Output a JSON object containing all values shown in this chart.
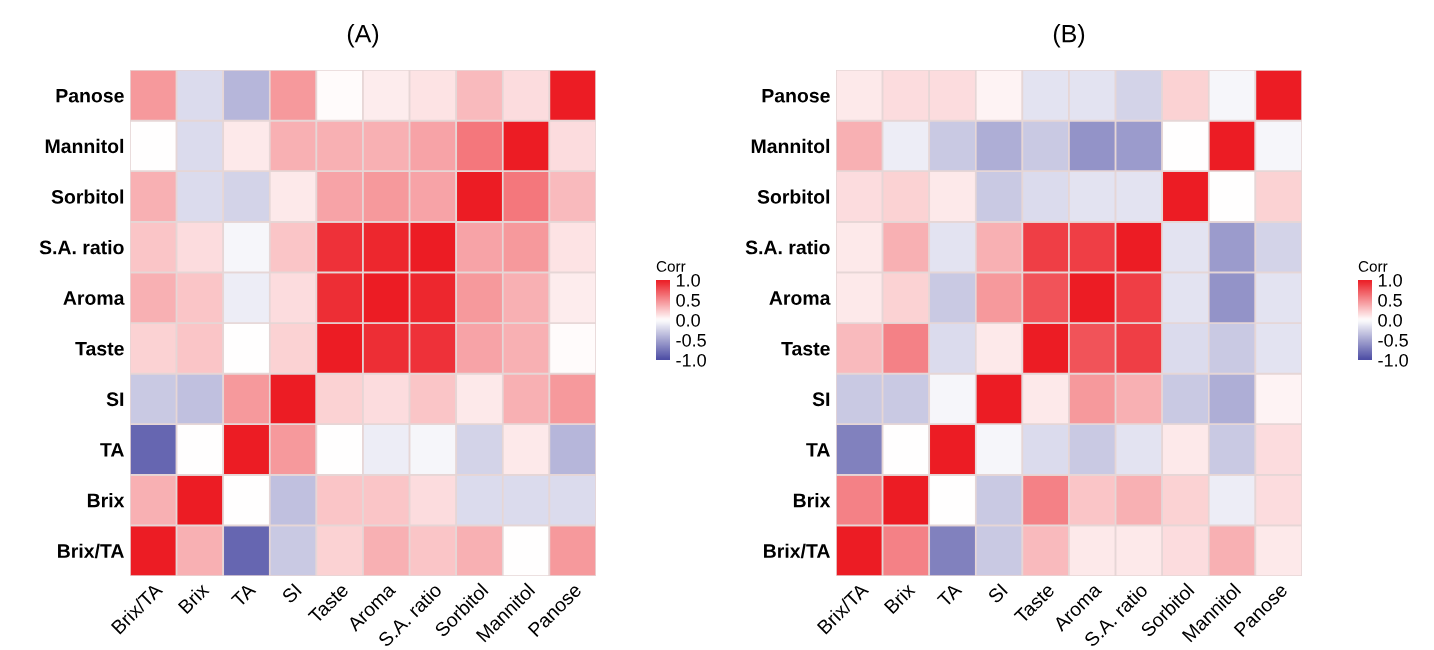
{
  "chart_data": [
    {
      "type": "heatmap",
      "title": "(A)",
      "clabel": "Corr",
      "clim": [
        -1,
        1
      ],
      "cticks": [
        {
          "value": 1,
          "label": "1.0"
        },
        {
          "value": 0.5,
          "label": "0.5"
        },
        {
          "value": 0,
          "label": "0.0"
        },
        {
          "value": -0.5,
          "label": "-0.5"
        },
        {
          "value": -1,
          "label": "-1.0"
        }
      ],
      "categories": [
        "Brix/TA",
        "Brix",
        "TA",
        "SI",
        "Taste",
        "Aroma",
        "S.A. ratio",
        "Sorbitol",
        "Mannitol",
        "Panose"
      ],
      "y_categories": [
        "Panose",
        "Mannitol",
        "Sorbitol",
        "S.A. ratio",
        "Aroma",
        "Taste",
        "SI",
        "TA",
        "Brix",
        "Brix/TA"
      ],
      "cells": [
        [
          0.45,
          -0.2,
          -0.4,
          0.45,
          0.02,
          0.08,
          0.12,
          0.3,
          0.15,
          1
        ],
        [
          0,
          -0.2,
          0.1,
          0.35,
          0.35,
          0.35,
          0.4,
          0.6,
          1,
          0.15
        ],
        [
          0.35,
          -0.2,
          -0.25,
          0.1,
          0.4,
          0.45,
          0.4,
          1,
          0.6,
          0.3
        ],
        [
          0.25,
          0.15,
          -0.05,
          0.25,
          0.9,
          0.95,
          1,
          0.4,
          0.45,
          0.12
        ],
        [
          0.35,
          0.25,
          -0.1,
          0.15,
          0.92,
          1,
          0.95,
          0.45,
          0.35,
          0.08
        ],
        [
          0.2,
          0.25,
          0,
          0.2,
          1,
          0.92,
          0.9,
          0.4,
          0.35,
          0.02
        ],
        [
          -0.3,
          -0.35,
          0.45,
          1,
          0.2,
          0.15,
          0.25,
          0.1,
          0.35,
          0.45
        ],
        [
          -0.85,
          0,
          1,
          0.45,
          0,
          -0.1,
          -0.05,
          -0.25,
          0.1,
          -0.4
        ],
        [
          0.35,
          1,
          0,
          -0.35,
          0.25,
          0.25,
          0.15,
          -0.2,
          -0.2,
          -0.2
        ],
        [
          1,
          0.35,
          -0.85,
          -0.3,
          0.2,
          0.35,
          0.25,
          0.35,
          0,
          0.45
        ]
      ]
    },
    {
      "type": "heatmap",
      "title": "(B)",
      "clabel": "Corr",
      "clim": [
        -1,
        1
      ],
      "cticks": [
        {
          "value": 1,
          "label": "1.0"
        },
        {
          "value": 0.5,
          "label": "0.5"
        },
        {
          "value": 0,
          "label": "0.0"
        },
        {
          "value": -0.5,
          "label": "-0.5"
        },
        {
          "value": -1,
          "label": "-1.0"
        }
      ],
      "categories": [
        "Brix/TA",
        "Brix",
        "TA",
        "SI",
        "Taste",
        "Aroma",
        "S.A. ratio",
        "Sorbitol",
        "Mannitol",
        "Panose"
      ],
      "y_categories": [
        "Panose",
        "Mannitol",
        "Sorbitol",
        "S.A. ratio",
        "Aroma",
        "Taste",
        "SI",
        "TA",
        "Brix",
        "Brix/TA"
      ],
      "cells": [
        [
          0.1,
          0.15,
          0.15,
          0.05,
          -0.15,
          -0.15,
          -0.25,
          0.2,
          -0.05,
          1
        ],
        [
          0.35,
          -0.1,
          -0.3,
          -0.45,
          -0.3,
          -0.6,
          -0.55,
          0,
          1,
          -0.05
        ],
        [
          0.15,
          0.2,
          0.1,
          -0.3,
          -0.2,
          -0.15,
          -0.15,
          1,
          0,
          0.2
        ],
        [
          0.1,
          0.35,
          -0.15,
          0.35,
          0.85,
          0.85,
          1,
          -0.15,
          -0.55,
          -0.25
        ],
        [
          0.1,
          0.2,
          -0.3,
          0.45,
          0.75,
          1,
          0.85,
          -0.15,
          -0.6,
          -0.15
        ],
        [
          0.3,
          0.55,
          -0.2,
          0.1,
          1,
          0.75,
          0.85,
          -0.2,
          -0.3,
          -0.15
        ],
        [
          -0.3,
          -0.3,
          -0.05,
          1,
          0.1,
          0.45,
          0.35,
          -0.3,
          -0.45,
          0.05
        ],
        [
          -0.7,
          0,
          1,
          -0.05,
          -0.2,
          -0.3,
          -0.15,
          0.1,
          -0.3,
          0.15
        ],
        [
          0.55,
          1,
          0,
          -0.3,
          0.55,
          0.25,
          0.35,
          0.2,
          -0.1,
          0.15
        ],
        [
          1,
          0.55,
          -0.7,
          -0.3,
          0.3,
          0.1,
          0.1,
          0.15,
          0.35,
          0.1
        ]
      ]
    }
  ]
}
